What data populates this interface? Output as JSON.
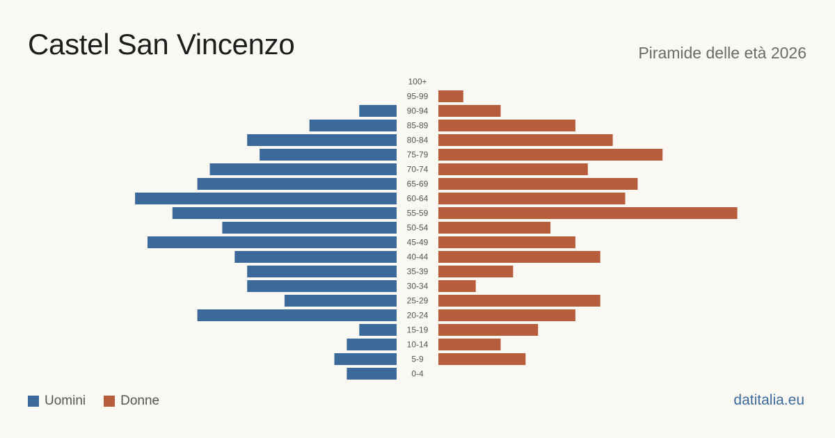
{
  "header": {
    "title": "Castel San Vincenzo",
    "subtitle": "Piramide delle età 2026"
  },
  "legend": {
    "male_label": "Uomini",
    "female_label": "Donne"
  },
  "footer": {
    "source": "datitalia.eu"
  },
  "colors": {
    "male": "#3b6a9a",
    "female": "#b85d3c",
    "age_label": "#555555"
  },
  "chart_data": {
    "type": "bar",
    "orientation": "horizontal-pyramid",
    "categories": [
      "100+",
      "95-99",
      "90-94",
      "85-89",
      "80-84",
      "75-79",
      "70-74",
      "65-69",
      "60-64",
      "55-59",
      "50-54",
      "45-49",
      "40-44",
      "35-39",
      "30-34",
      "25-29",
      "20-24",
      "15-19",
      "10-14",
      "5-9",
      "0-4"
    ],
    "series": [
      {
        "name": "Uomini",
        "values": [
          0,
          0,
          3,
          7,
          12,
          11,
          15,
          16,
          21,
          18,
          14,
          20,
          13,
          12,
          12,
          9,
          16,
          3,
          4,
          5,
          4
        ]
      },
      {
        "name": "Donne",
        "values": [
          0,
          2,
          5,
          11,
          14,
          18,
          12,
          16,
          15,
          24,
          9,
          11,
          13,
          6,
          3,
          13,
          11,
          8,
          5,
          7,
          0
        ]
      }
    ],
    "legend_position": "bottom-left",
    "grid": false
  }
}
